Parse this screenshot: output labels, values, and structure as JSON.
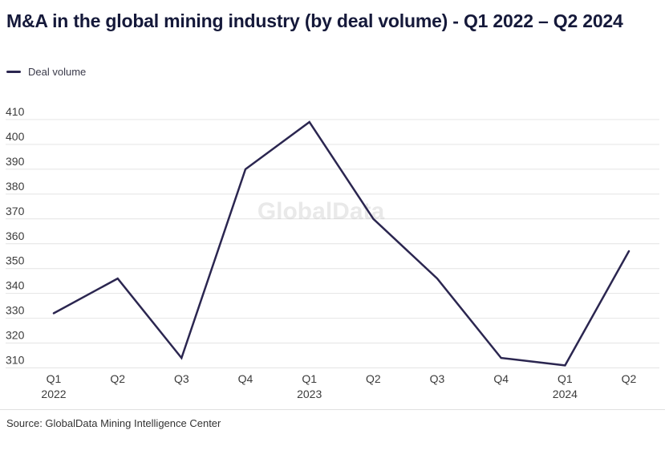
{
  "colors": {
    "line": "#2b2650",
    "title": "#15193a",
    "axis_labels": "#3c3c3c",
    "gridlines": "#e4e4e4",
    "watermark": "#c4c4c4",
    "source": "#333333",
    "background": "#ffffff"
  },
  "chart_data": {
    "type": "line",
    "title": "M&A in the global mining industry (by deal volume) - Q1 2022 – Q2 2024",
    "categories": [
      {
        "quarter": "Q1",
        "year": "2022"
      },
      {
        "quarter": "Q2",
        "year": ""
      },
      {
        "quarter": "Q3",
        "year": ""
      },
      {
        "quarter": "Q4",
        "year": ""
      },
      {
        "quarter": "Q1",
        "year": "2023"
      },
      {
        "quarter": "Q2",
        "year": ""
      },
      {
        "quarter": "Q3",
        "year": ""
      },
      {
        "quarter": "Q4",
        "year": ""
      },
      {
        "quarter": "Q1",
        "year": "2024"
      },
      {
        "quarter": "Q2",
        "year": ""
      }
    ],
    "series": [
      {
        "name": "Deal volume",
        "values": [
          332,
          346,
          314,
          390,
          409,
          370,
          346,
          314,
          311,
          357
        ]
      }
    ],
    "xlabel": "",
    "ylabel": "",
    "ylim": [
      310,
      410
    ],
    "y_ticks": [
      310,
      320,
      330,
      340,
      350,
      360,
      370,
      380,
      390,
      400,
      410
    ],
    "grid": "horizontal-only",
    "legend_position": "top-left",
    "watermark": "GlobalData",
    "source": "Source: GlobalData Mining Intelligence Center"
  }
}
